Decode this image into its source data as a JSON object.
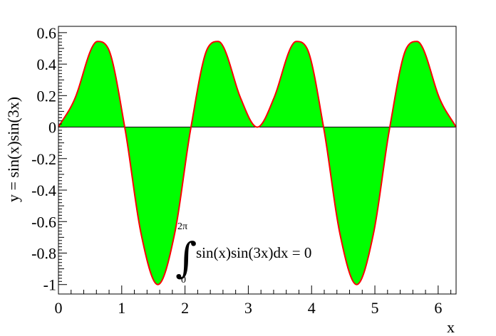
{
  "chart_data": {
    "type": "area",
    "function": "sin(x)sin(3x)",
    "xlabel": "x",
    "ylabel": "y = sin(x)sin(3x)",
    "xlim": [
      0,
      6.2832
    ],
    "ylim": [
      -1.06,
      0.64
    ],
    "x_ticks": [
      "0",
      "1",
      "2",
      "3",
      "4",
      "5",
      "6"
    ],
    "y_ticks": [
      "0.6",
      "0.4",
      "0.2",
      "0",
      "-0.2",
      "-0.4",
      "-0.6",
      "-0.8",
      "-1"
    ],
    "x": [
      0,
      0.2618,
      0.5236,
      0.6155,
      0.7854,
      1.0472,
      1.309,
      1.5708,
      1.8326,
      2.0944,
      2.3562,
      2.5261,
      2.618,
      2.8798,
      3.1416,
      3.4034,
      3.6652,
      3.7571,
      3.927,
      4.1888,
      4.4506,
      4.7124,
      4.9742,
      5.236,
      5.4978,
      5.6677,
      5.7596,
      6.0214,
      6.2832
    ],
    "y": [
      0,
      0.183,
      0.5,
      0.544,
      0.5,
      0,
      -0.683,
      -1,
      -0.683,
      0,
      0.5,
      0.544,
      0.5,
      0.183,
      0,
      0.183,
      0.5,
      0.544,
      0.5,
      0,
      -0.683,
      -1,
      -0.683,
      0,
      0.5,
      0.544,
      0.5,
      0.183,
      0
    ],
    "fill_positive": "#00ff00",
    "fill_negative": "#ffff00",
    "line_color": "#ff0000",
    "annotation": {
      "upper_limit": "2π",
      "lower_limit": "0",
      "integral_sign": "∫",
      "text": "sin(x)sin(3x)dx = 0"
    }
  }
}
